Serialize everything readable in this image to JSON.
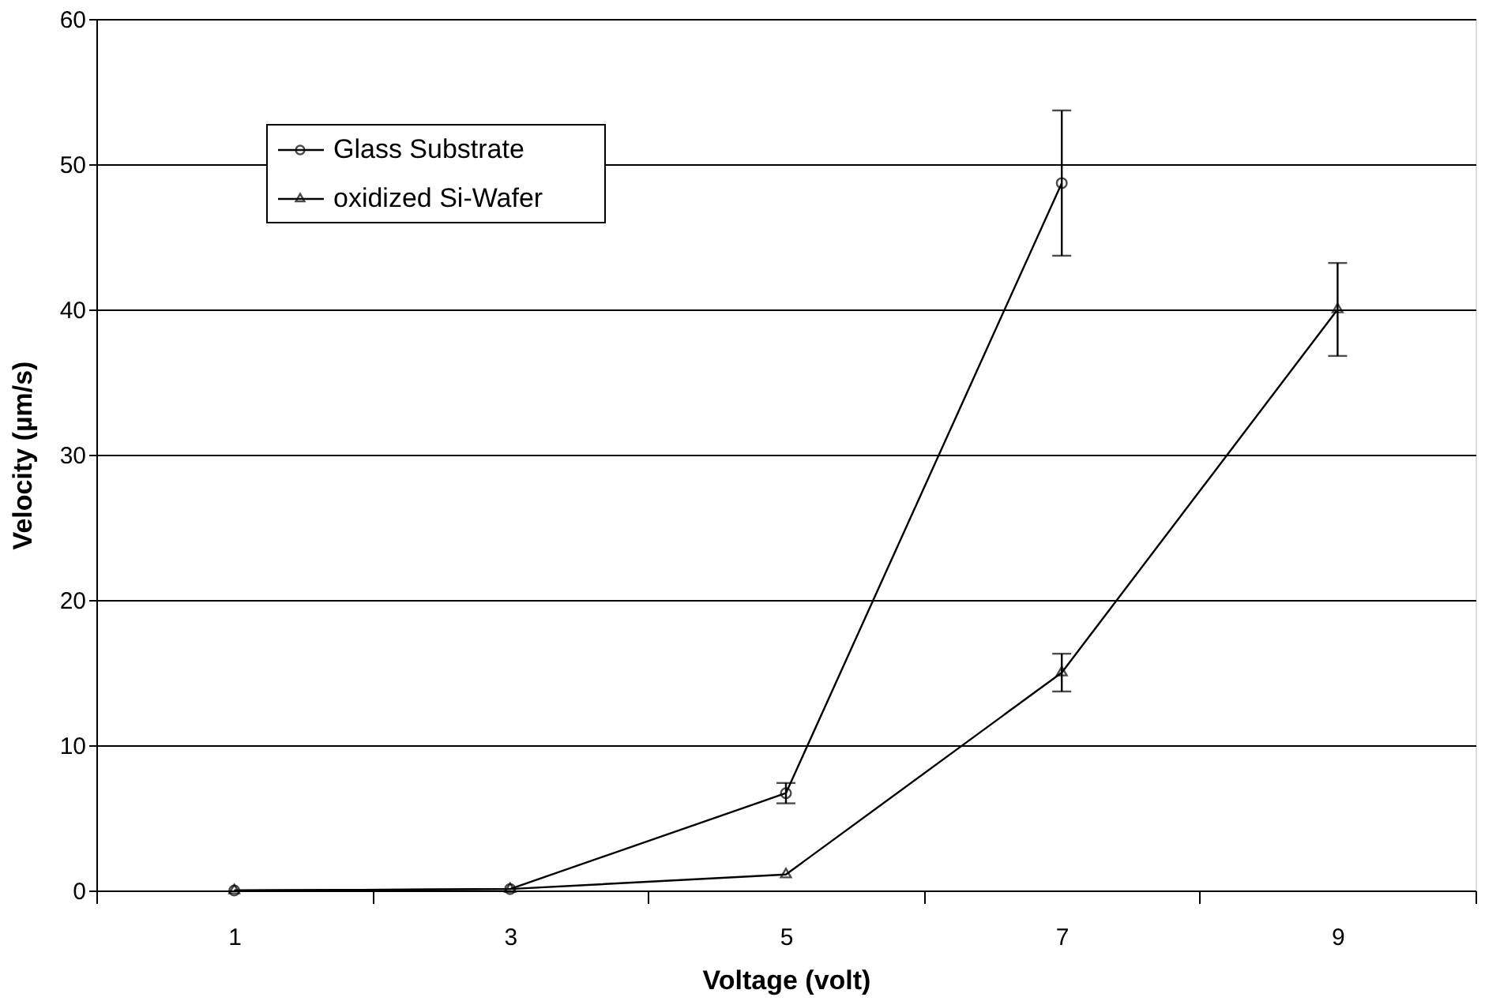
{
  "chart_data": {
    "type": "line",
    "xlabel": "Voltage (volt)",
    "ylabel": "Velocity (µm/s)",
    "categories": [
      "1",
      "3",
      "5",
      "7",
      "9"
    ],
    "series": [
      {
        "name": "Glass Substrate",
        "color": "#000000",
        "marker": "circle",
        "values": [
          0,
          0.1,
          6.7,
          48.7,
          null
        ],
        "errors": [
          null,
          null,
          0.7,
          5,
          null
        ]
      },
      {
        "name": "oxidized Si-Wafer",
        "color": "#000000",
        "marker": "triangle",
        "values": [
          0,
          0.1,
          1.1,
          15.0,
          40.0
        ],
        "errors": [
          null,
          null,
          null,
          1.3,
          3.2
        ]
      }
    ],
    "ylim": [
      0,
      60
    ],
    "yticks": [
      0,
      10,
      20,
      30,
      40,
      50,
      60
    ],
    "grid": "y",
    "legend": "top left",
    "line_style": "solid"
  }
}
